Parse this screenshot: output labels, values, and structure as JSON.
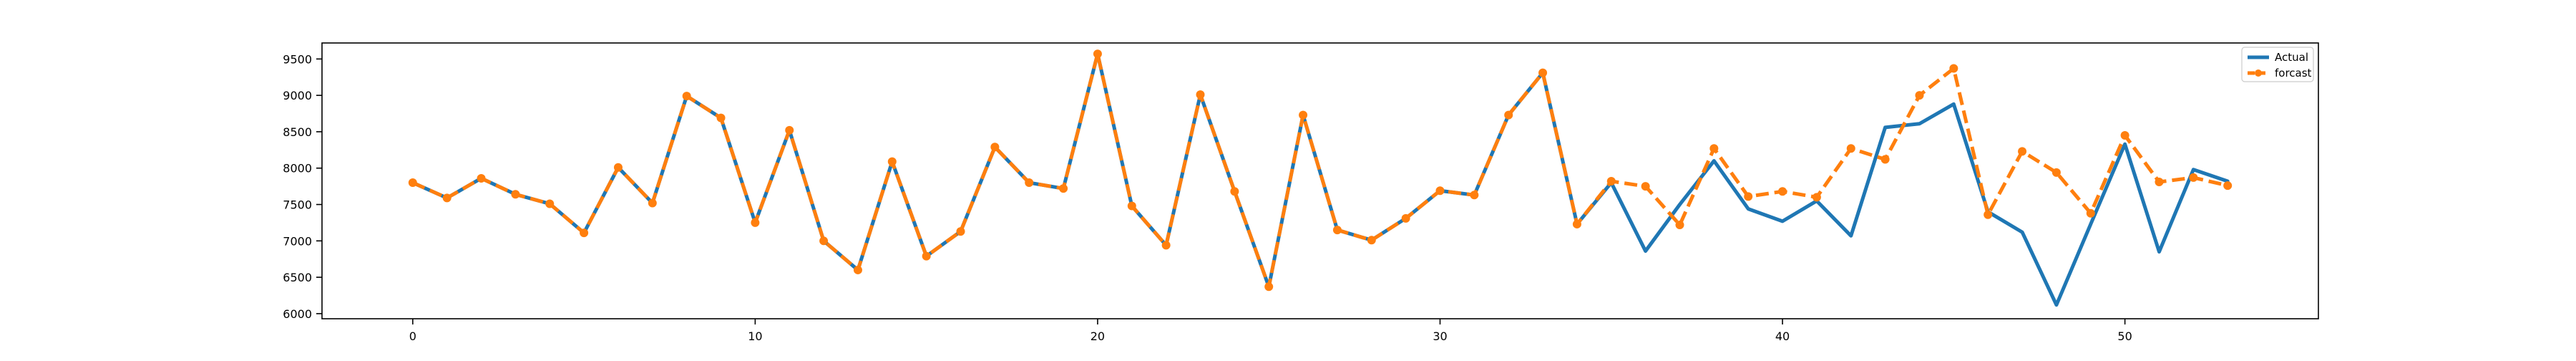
{
  "chart_data": {
    "type": "line",
    "title": "",
    "xlabel": "",
    "ylabel": "",
    "xlim": [
      -2.65,
      55.65
    ],
    "ylim": [
      5930,
      9720
    ],
    "x_ticks": [
      0,
      10,
      20,
      30,
      40,
      50
    ],
    "y_ticks": [
      6000,
      6500,
      7000,
      7500,
      8000,
      8500,
      9000,
      9500
    ],
    "grid": false,
    "legend_position": "top-right",
    "x": [
      0,
      1,
      2,
      3,
      4,
      5,
      6,
      7,
      8,
      9,
      10,
      11,
      12,
      13,
      14,
      15,
      16,
      17,
      18,
      19,
      20,
      21,
      22,
      23,
      24,
      25,
      26,
      27,
      28,
      29,
      30,
      31,
      32,
      33,
      34,
      35,
      36,
      37,
      38,
      39,
      40,
      41,
      42,
      43,
      44,
      45,
      46,
      47,
      48,
      49,
      50,
      51,
      52,
      53
    ],
    "series": [
      {
        "name": "Actual",
        "color": "#1f77b4",
        "style": "solid",
        "marker": "none",
        "values": [
          7800,
          7590,
          7860,
          7640,
          7510,
          7110,
          8010,
          7520,
          8990,
          8690,
          7250,
          8520,
          7000,
          6600,
          8090,
          6790,
          7130,
          8290,
          7800,
          7720,
          9570,
          7480,
          6940,
          9010,
          7680,
          6370,
          8730,
          7150,
          7010,
          7310,
          7690,
          7630,
          8730,
          9310,
          7230,
          7800,
          6860,
          7500,
          8100,
          7440,
          7270,
          7550,
          7070,
          8560,
          8610,
          8880,
          7400,
          7120,
          6120,
          7230,
          8330,
          6850,
          7980,
          7820
        ]
      },
      {
        "name": "forcast",
        "color": "#ff7f0e",
        "style": "dashed",
        "marker": "circle",
        "values": [
          7800,
          7590,
          7860,
          7640,
          7510,
          7110,
          8010,
          7520,
          8990,
          8690,
          7250,
          8520,
          7000,
          6600,
          8090,
          6790,
          7130,
          8290,
          7800,
          7720,
          9570,
          7480,
          6940,
          9010,
          7680,
          6370,
          8730,
          7150,
          7010,
          7310,
          7690,
          7630,
          8730,
          9310,
          7230,
          7820,
          7750,
          7220,
          8270,
          7610,
          7680,
          7600,
          8270,
          8120,
          9000,
          9370,
          7360,
          8230,
          7940,
          7380,
          8450,
          7810,
          7870,
          7760
        ]
      }
    ]
  }
}
